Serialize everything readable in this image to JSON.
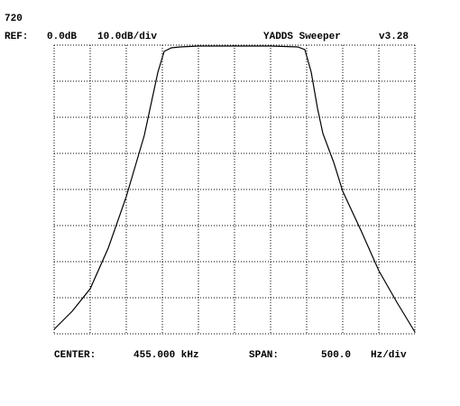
{
  "chart_data": {
    "type": "line",
    "screen_id": "720",
    "ref_label": "REF:",
    "ref_level": "0.0dB",
    "scale": "10.0dB/div",
    "title": "YADDS Sweeper",
    "version": "v3.28",
    "center_label": "CENTER:",
    "center_value": "455.000 kHz",
    "span_label": "SPAN:",
    "span_value": "500.0",
    "span_unit": "Hz/div",
    "x": [
      452.5,
      452.75,
      453,
      453.25,
      453.5,
      453.75,
      453.938,
      454.025,
      454.125,
      454.25,
      454.5,
      455,
      455.5,
      455.875,
      455.975,
      456.063,
      456.15,
      456.225,
      456.375,
      456.5,
      456.75,
      457,
      457.25,
      457.5
    ],
    "series": [
      {
        "color": "#000000",
        "values": [
          -78.75,
          -73.75,
          -67.5,
          -56.25,
          -42,
          -25,
          -7.5,
          -1.75,
          -0.75,
          -0.5,
          -0.25,
          -0.25,
          -0.25,
          -0.5,
          -1.25,
          -7.5,
          -17.5,
          -24.5,
          -32.5,
          -40.5,
          -51.25,
          -62.5,
          -71.25,
          -79.5
        ]
      }
    ],
    "xlim": [
      452.5,
      457.5
    ],
    "ylim": [
      -80,
      0
    ],
    "xticks": [
      452.5,
      453,
      453.5,
      454,
      454.5,
      455,
      455.5,
      456,
      456.5,
      457,
      457.5
    ],
    "yticks": [
      -80,
      -70,
      -60,
      -50,
      -40,
      -30,
      -20,
      -10,
      0
    ],
    "grid": true
  }
}
